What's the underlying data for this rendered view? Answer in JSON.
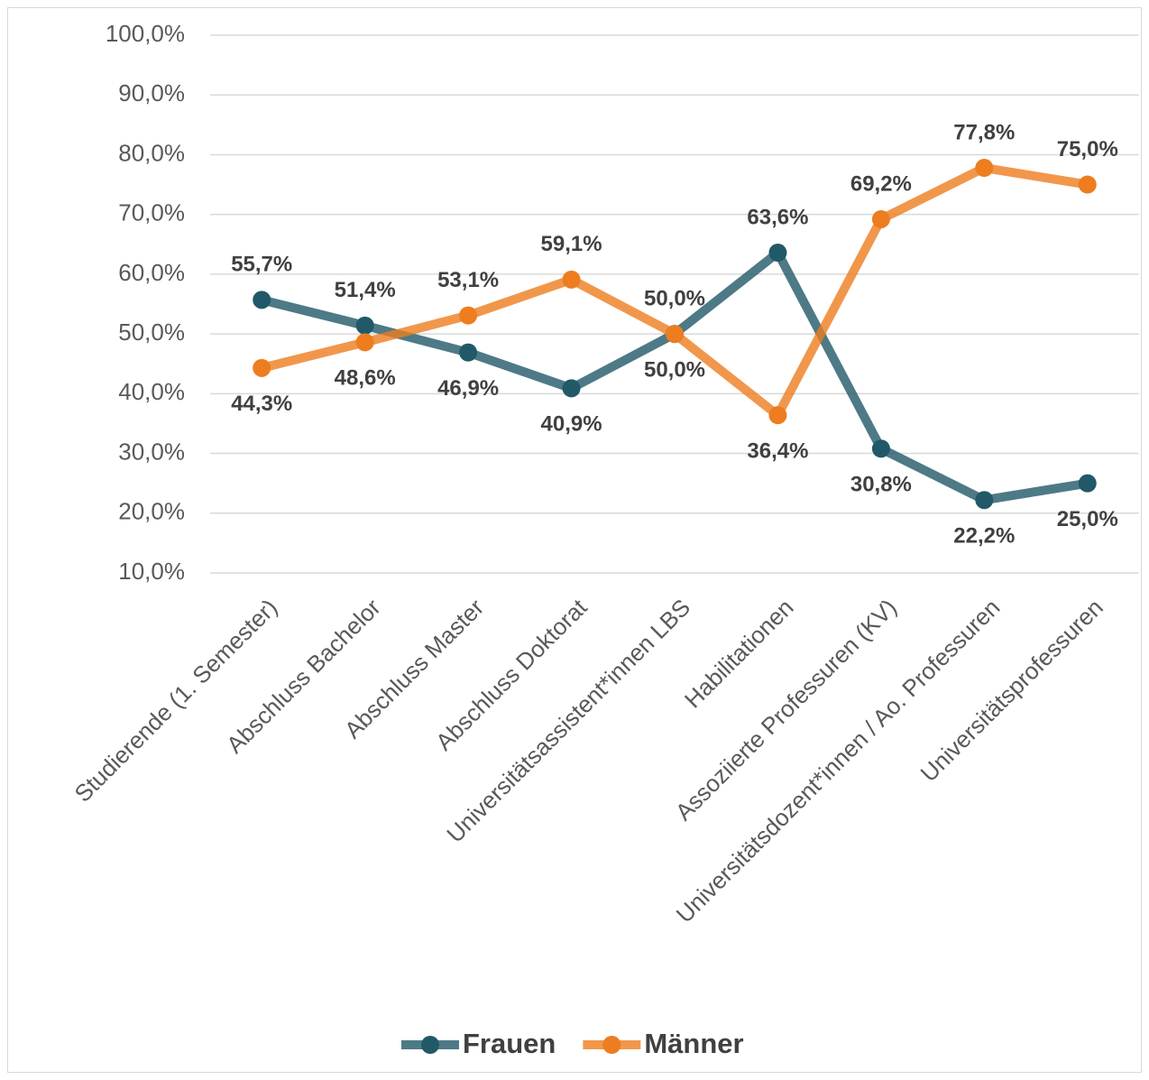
{
  "chart_data": {
    "type": "line",
    "categories": [
      "Studierende (1. Semester)",
      "Abschluss Bachelor",
      "Abschluss Master",
      "Abschluss Doktorat",
      "Universitätsassistent*innen LBS",
      "Habilitationen",
      "Assoziierte Professuren (KV)",
      "Universitätsdozent*innen / Ao. Professuren",
      "Universitätsprofessuren"
    ],
    "series": [
      {
        "name": "Frauen",
        "color": "#215968",
        "values": [
          55.7,
          51.4,
          46.9,
          40.9,
          50.0,
          63.6,
          30.8,
          22.2,
          25.0
        ],
        "value_labels": [
          "55,7%",
          "51,4%",
          "46,9%",
          "40,9%",
          "50,0%",
          "63,6%",
          "30,8%",
          "22,2%",
          "25,0%"
        ]
      },
      {
        "name": "Männer",
        "color": "#ed7d1f",
        "values": [
          44.3,
          48.6,
          53.1,
          59.1,
          50.0,
          36.4,
          69.2,
          77.8,
          75.0
        ],
        "value_labels": [
          "44,3%",
          "48,6%",
          "53,1%",
          "59,1%",
          "50,0%",
          "36,4%",
          "69,2%",
          "77,8%",
          "75,0%"
        ]
      }
    ],
    "ylim": [
      10,
      100
    ],
    "yticks": [
      {
        "value": 10,
        "label": "10,0%"
      },
      {
        "value": 20,
        "label": "20,0%"
      },
      {
        "value": 30,
        "label": "30,0%"
      },
      {
        "value": 40,
        "label": "40,0%"
      },
      {
        "value": 50,
        "label": "50,0%"
      },
      {
        "value": 60,
        "label": "60,0%"
      },
      {
        "value": 70,
        "label": "70,0%"
      },
      {
        "value": 80,
        "label": "80,0%"
      },
      {
        "value": 90,
        "label": "90,0%"
      },
      {
        "value": 100,
        "label": "100,0%"
      }
    ],
    "grid": true,
    "legend": "bottom"
  }
}
